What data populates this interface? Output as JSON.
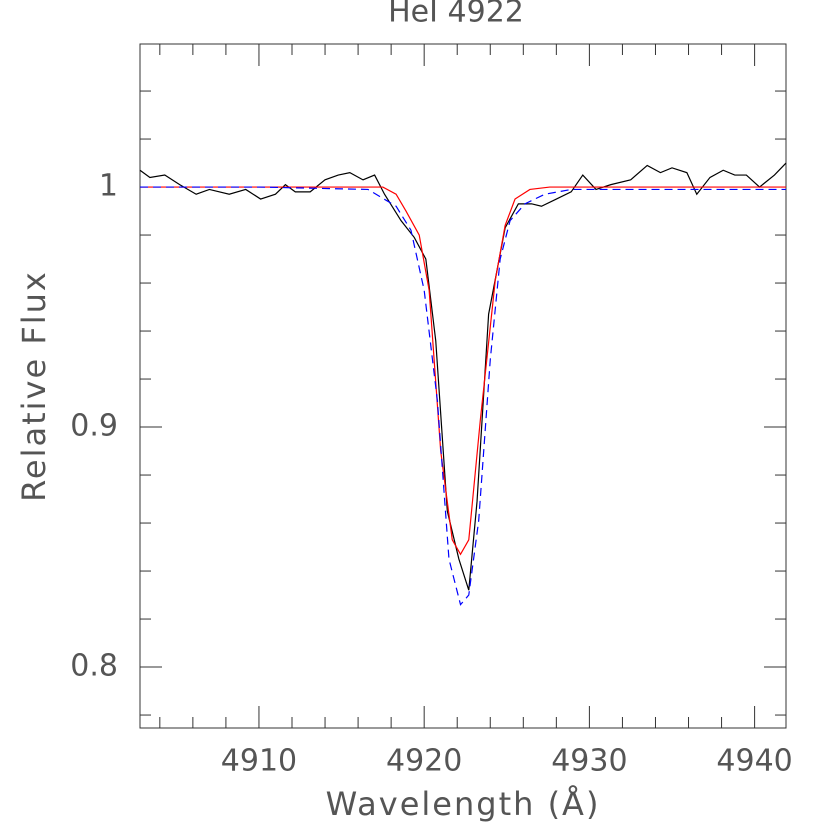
{
  "chart_data": {
    "type": "line",
    "title": "HeI 4922",
    "x_label": "Wavelength (Å)",
    "y_label": "Relative Flux",
    "xlim": [
      4902.8,
      4941.9
    ],
    "ylim": [
      0.7746,
      1.0596
    ],
    "xticks": [
      4910,
      4920,
      4930,
      4940
    ],
    "yticks": [
      0.8,
      0.9,
      1
    ],
    "series": [
      {
        "color": "#000000",
        "dash": false,
        "x": [
          4902.8,
          4903.4,
          4904.3,
          4905.2,
          4906.2,
          4907.0,
          4908.2,
          4909.2,
          4910.1,
          4911.0,
          4911.6,
          4912.2,
          4913.1,
          4914.0,
          4914.8,
          4915.5,
          4916.3,
          4917.0,
          4917.6,
          4918.6,
          4919.4,
          4920.1,
          4920.7,
          4921.4,
          4922.1,
          4922.7,
          4923.2,
          4923.9,
          4924.9,
          4925.7,
          4926.5,
          4927.1,
          4928.0,
          4928.9,
          4929.6,
          4930.4,
          4931.3,
          4932.5,
          4933.5,
          4934.3,
          4935.0,
          4935.9,
          4936.5,
          4937.3,
          4938.1,
          4938.8,
          4939.5,
          4940.3,
          4941.2,
          4941.9
        ],
        "values": [
          1.007,
          1.004,
          1.005,
          1.001,
          0.997,
          0.999,
          0.997,
          0.999,
          0.995,
          0.997,
          1.001,
          0.998,
          0.998,
          1.003,
          1.005,
          1.006,
          1.003,
          1.005,
          0.997,
          0.986,
          0.979,
          0.97,
          0.936,
          0.865,
          0.845,
          0.832,
          0.869,
          0.947,
          0.983,
          0.993,
          0.993,
          0.992,
          0.995,
          0.998,
          1.005,
          0.999,
          1.001,
          1.003,
          1.009,
          1.006,
          1.008,
          1.006,
          0.997,
          1.004,
          1.007,
          1.005,
          1.005,
          1.0,
          1.005,
          1.01
        ]
      },
      {
        "color": "#ff0000",
        "dash": false,
        "x": [
          4902.8,
          4910.0,
          4917.5,
          4918.3,
          4918.9,
          4919.7,
          4920.3,
          4921.0,
          4921.7,
          4922.2,
          4922.7,
          4923.4,
          4924.3,
          4924.9,
          4925.5,
          4926.4,
          4927.6,
          4935.0,
          4941.9
        ],
        "values": [
          1.0,
          1.0,
          1.0,
          0.997,
          0.99,
          0.98,
          0.957,
          0.89,
          0.853,
          0.847,
          0.853,
          0.903,
          0.961,
          0.984,
          0.995,
          0.999,
          1.0,
          1.0,
          1.0
        ]
      },
      {
        "color": "#0000ff",
        "dash": true,
        "x": [
          4902.8,
          4910.0,
          4916.6,
          4918.3,
          4919.2,
          4920.0,
          4920.8,
          4921.5,
          4922.2,
          4922.7,
          4923.3,
          4924.0,
          4924.6,
          4925.2,
          4926.1,
          4927.3,
          4928.9,
          4935.0,
          4941.9
        ],
        "values": [
          1.0,
          1.0,
          0.999,
          0.992,
          0.982,
          0.957,
          0.911,
          0.845,
          0.826,
          0.83,
          0.861,
          0.928,
          0.97,
          0.986,
          0.993,
          0.997,
          0.999,
          0.999,
          0.999
        ]
      }
    ]
  }
}
